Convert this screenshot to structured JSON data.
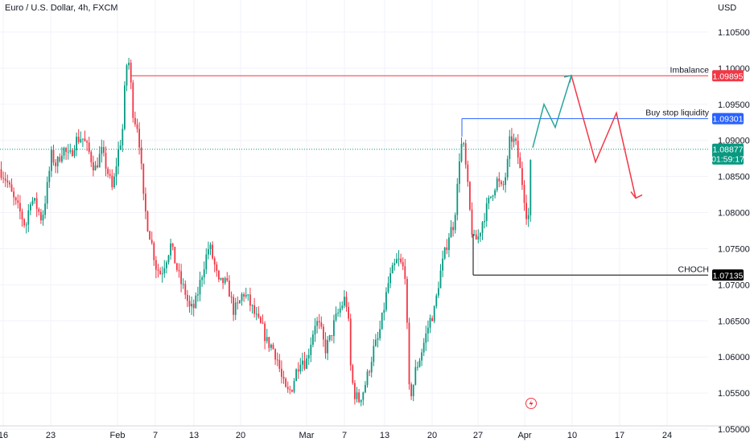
{
  "header": {
    "symbol": "Euro / U.S. Dollar, 4h, FXCM"
  },
  "chart_data": {
    "type": "candlestick",
    "currency": "USD",
    "ylim": [
      1.046,
      1.109
    ],
    "y_ticks": [
      "1.10500",
      "1.10000",
      "1.09500",
      "1.09000",
      "1.08500",
      "1.08000",
      "1.07500",
      "1.07000",
      "1.06500",
      "1.06000",
      "1.05500",
      "1.05000"
    ],
    "x_ticks": [
      "16",
      "23",
      "Feb",
      "7",
      "13",
      "20",
      "Mar",
      "7",
      "13",
      "20",
      "27",
      "Apr",
      "10",
      "17",
      "24"
    ],
    "price_path": [
      [
        0,
        1.086
      ],
      [
        8,
        1.0845
      ],
      [
        18,
        1.0815
      ],
      [
        25,
        1.08
      ],
      [
        32,
        1.078
      ],
      [
        38,
        1.082
      ],
      [
        45,
        1.081
      ],
      [
        52,
        1.079
      ],
      [
        58,
        1.083
      ],
      [
        64,
        1.088
      ],
      [
        70,
        1.0865
      ],
      [
        78,
        1.089
      ],
      [
        86,
        1.0875
      ],
      [
        94,
        1.09
      ],
      [
        102,
        1.0905
      ],
      [
        110,
        1.0885
      ],
      [
        118,
        1.086
      ],
      [
        126,
        1.0885
      ],
      [
        133,
        1.086
      ],
      [
        140,
        1.083
      ],
      [
        146,
        1.088
      ],
      [
        152,
        1.091
      ],
      [
        156,
        1.099
      ],
      [
        159,
        1.102
      ],
      [
        162,
        1.0985
      ],
      [
        166,
        1.093
      ],
      [
        170,
        1.0925
      ],
      [
        174,
        1.089
      ],
      [
        178,
        1.082
      ],
      [
        183,
        1.0785
      ],
      [
        188,
        1.076
      ],
      [
        194,
        1.0725
      ],
      [
        200,
        1.0715
      ],
      [
        206,
        1.0735
      ],
      [
        212,
        1.0755
      ],
      [
        218,
        1.073
      ],
      [
        224,
        1.0705
      ],
      [
        230,
        1.069
      ],
      [
        236,
        1.0665
      ],
      [
        242,
        1.067
      ],
      [
        248,
        1.07
      ],
      [
        254,
        1.073
      ],
      [
        260,
        1.0755
      ],
      [
        266,
        1.073
      ],
      [
        272,
        1.07
      ],
      [
        278,
        1.0705
      ],
      [
        284,
        1.0695
      ],
      [
        290,
        1.0665
      ],
      [
        296,
        1.067
      ],
      [
        302,
        1.069
      ],
      [
        308,
        1.068
      ],
      [
        314,
        1.0665
      ],
      [
        320,
        1.065
      ],
      [
        326,
        1.064
      ],
      [
        332,
        1.062
      ],
      [
        338,
        1.0615
      ],
      [
        344,
        1.06
      ],
      [
        350,
        1.057
      ],
      [
        356,
        1.055
      ],
      [
        362,
        1.0555
      ],
      [
        368,
        1.058
      ],
      [
        374,
        1.06
      ],
      [
        380,
        1.059
      ],
      [
        386,
        1.062
      ],
      [
        392,
        1.065
      ],
      [
        398,
        1.064
      ],
      [
        404,
        1.061
      ],
      [
        410,
        1.0625
      ],
      [
        416,
        1.065
      ],
      [
        422,
        1.0665
      ],
      [
        428,
        1.068
      ],
      [
        432,
        1.067
      ],
      [
        436,
        1.058
      ],
      [
        440,
        1.055
      ],
      [
        446,
        1.054
      ],
      [
        452,
        1.0555
      ],
      [
        458,
        1.058
      ],
      [
        464,
        1.061
      ],
      [
        470,
        1.0625
      ],
      [
        476,
        1.066
      ],
      [
        482,
        1.07
      ],
      [
        488,
        1.072
      ],
      [
        494,
        1.0735
      ],
      [
        500,
        1.0725
      ],
      [
        504,
        1.0715
      ],
      [
        508,
        1.0555
      ],
      [
        512,
        1.055
      ],
      [
        516,
        1.058
      ],
      [
        522,
        1.06
      ],
      [
        528,
        1.0625
      ],
      [
        534,
        1.065
      ],
      [
        540,
        1.0665
      ],
      [
        546,
        1.071
      ],
      [
        552,
        1.074
      ],
      [
        558,
        1.077
      ],
      [
        564,
        1.0785
      ],
      [
        568,
        1.083
      ],
      [
        572,
        1.0895
      ],
      [
        576,
        1.089
      ],
      [
        580,
        1.085
      ],
      [
        584,
        1.08
      ],
      [
        588,
        1.076
      ],
      [
        594,
        1.0765
      ],
      [
        600,
        1.079
      ],
      [
        606,
        1.081
      ],
      [
        612,
        1.083
      ],
      [
        618,
        1.0845
      ],
      [
        624,
        1.083
      ],
      [
        630,
        1.086
      ],
      [
        634,
        1.0905
      ],
      [
        638,
        1.09
      ],
      [
        642,
        1.089
      ],
      [
        646,
        1.086
      ],
      [
        650,
        1.0835
      ],
      [
        654,
        1.08
      ],
      [
        657,
        1.0795
      ],
      [
        660,
        1.0887
      ]
    ],
    "levels": [
      {
        "label": "Imbalance",
        "price": 1.09895,
        "badge": "1.09895",
        "color": "#f23645"
      },
      {
        "label": "Buy stop liquidity",
        "price": 1.09301,
        "badge": "1.09301",
        "color": "#2962ff"
      },
      {
        "label": "CHOCH",
        "price": 1.07135,
        "badge": "1.07135",
        "color": "#000000"
      }
    ],
    "last_price": {
      "price": 1.08877,
      "badge": "1.08877",
      "countdown": "01:59:17",
      "color": "#089981"
    },
    "projection_up": [
      [
        662,
        1.089
      ],
      [
        676,
        1.095
      ],
      [
        690,
        1.0918
      ],
      [
        710,
        1.099
      ]
    ],
    "projection_down": [
      [
        710,
        1.099
      ],
      [
        740,
        1.087
      ],
      [
        766,
        1.0938
      ],
      [
        790,
        1.082
      ]
    ]
  }
}
